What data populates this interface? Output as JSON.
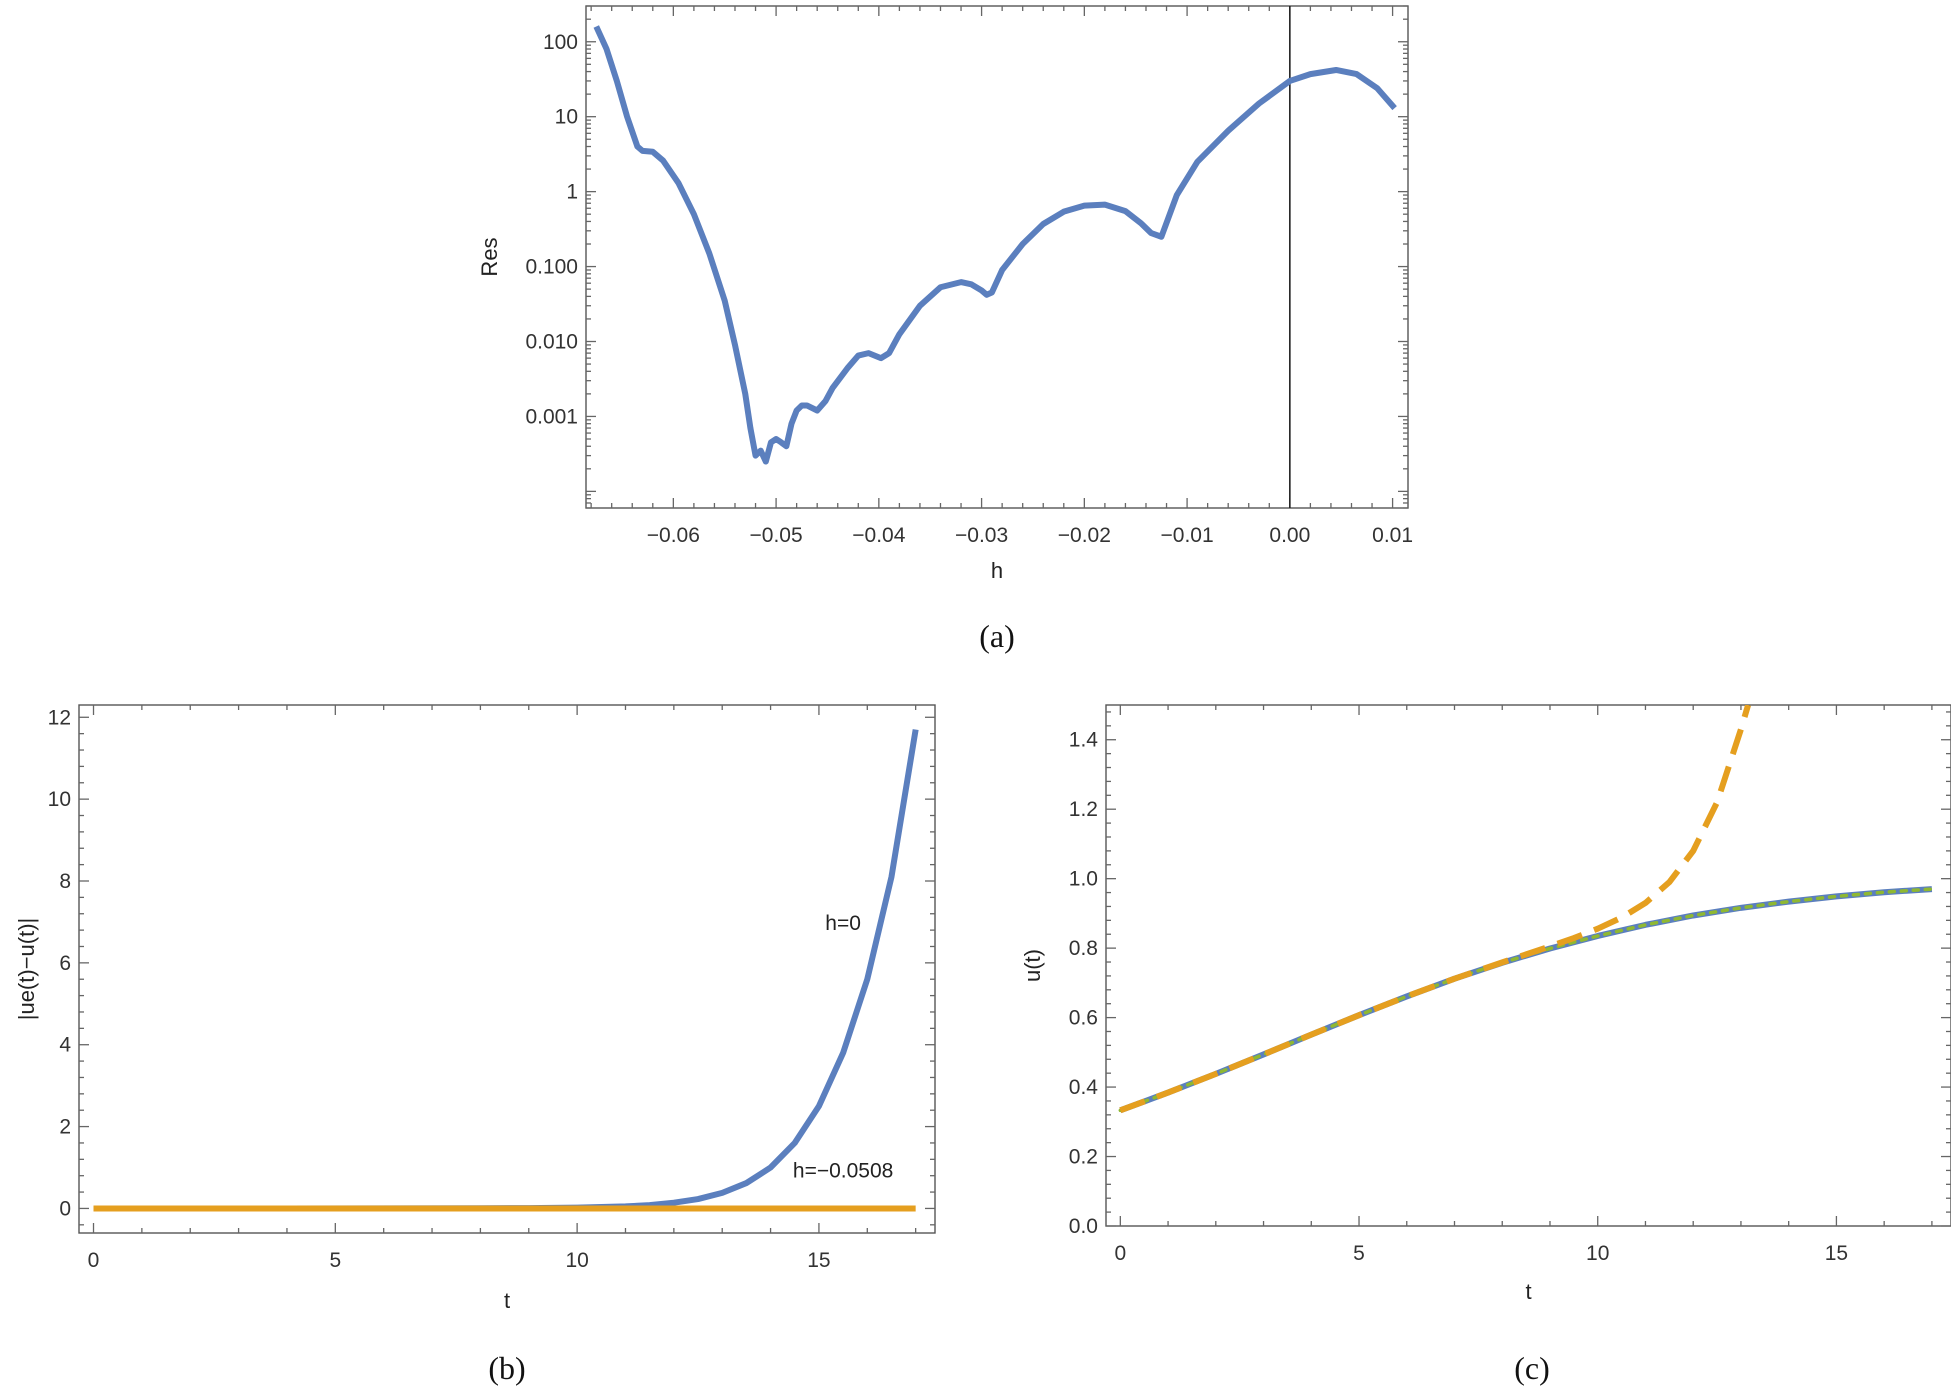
{
  "chart_data": [
    {
      "id": "a",
      "type": "line",
      "caption": "(a)",
      "xlabel": "h",
      "ylabel": "Res",
      "xlim": [
        -0.0685,
        0.0115
      ],
      "ylim": [
        6e-05,
        300
      ],
      "yscale": "log",
      "xticks": [
        -0.06,
        -0.05,
        -0.04,
        -0.03,
        -0.02,
        -0.01,
        0.0,
        0.01
      ],
      "xtick_labels": [
        "−0.06",
        "−0.05",
        "−0.04",
        "−0.03",
        "−0.02",
        "−0.01",
        "0.00",
        "0.01"
      ],
      "yticks": [
        0.001,
        0.01,
        0.1,
        1,
        10,
        100
      ],
      "ytick_labels": [
        "0.001",
        "0.010",
        "0.100",
        "1",
        "10",
        "100"
      ],
      "vline_x": 0.0,
      "series": [
        {
          "color": "#5b7fbe",
          "x": [
            -0.0675,
            -0.0665,
            -0.0655,
            -0.0645,
            -0.0635,
            -0.063,
            -0.062,
            -0.061,
            -0.0595,
            -0.058,
            -0.0565,
            -0.055,
            -0.054,
            -0.053,
            -0.0525,
            -0.052,
            -0.0515,
            -0.051,
            -0.0505,
            -0.05,
            -0.0495,
            -0.049,
            -0.0485,
            -0.048,
            -0.0475,
            -0.047,
            -0.046,
            -0.0452,
            -0.0445,
            -0.043,
            -0.042,
            -0.041,
            -0.0398,
            -0.039,
            -0.038,
            -0.036,
            -0.034,
            -0.032,
            -0.031,
            -0.03,
            -0.0295,
            -0.029,
            -0.028,
            -0.026,
            -0.024,
            -0.022,
            -0.02,
            -0.018,
            -0.016,
            -0.0145,
            -0.0135,
            -0.0125,
            -0.011,
            -0.009,
            -0.006,
            -0.003,
            0.0,
            0.002,
            0.0045,
            0.0065,
            0.0085,
            0.0102
          ],
          "y": [
            160,
            80,
            30,
            10,
            4,
            3.5,
            3.4,
            2.6,
            1.3,
            0.5,
            0.15,
            0.035,
            0.009,
            0.002,
            0.0007,
            0.0003,
            0.00035,
            0.00025,
            0.00045,
            0.0005,
            0.00045,
            0.0004,
            0.0008,
            0.0012,
            0.0014,
            0.0014,
            0.0012,
            0.0016,
            0.0024,
            0.0045,
            0.0065,
            0.007,
            0.006,
            0.007,
            0.0125,
            0.03,
            0.053,
            0.062,
            0.058,
            0.048,
            0.042,
            0.045,
            0.09,
            0.2,
            0.37,
            0.54,
            0.65,
            0.67,
            0.55,
            0.38,
            0.28,
            0.25,
            0.9,
            2.5,
            6.5,
            15,
            30,
            37,
            42,
            37,
            24,
            13
          ]
        }
      ]
    },
    {
      "id": "b",
      "type": "line",
      "caption": "(b)",
      "xlabel": "t",
      "ylabel": "|ue(t)−u(t)|",
      "xlim": [
        -0.3,
        17.4
      ],
      "ylim": [
        -0.6,
        12.3
      ],
      "xticks": [
        0,
        5,
        10,
        15
      ],
      "xtick_labels": [
        "0",
        "5",
        "10",
        "15"
      ],
      "yticks": [
        0,
        2,
        4,
        6,
        8,
        10,
        12
      ],
      "ytick_labels": [
        "0",
        "2",
        "4",
        "6",
        "8",
        "10",
        "12"
      ],
      "annotations": [
        {
          "text": "h=0",
          "x": 15.5,
          "y": 6.8
        },
        {
          "text": "h=−0.0508",
          "x": 15.5,
          "y": 0.75
        }
      ],
      "series": [
        {
          "label": "h=0",
          "color": "#5b7fbe",
          "x": [
            0,
            2,
            4,
            6,
            8,
            9,
            10,
            11,
            11.5,
            12,
            12.5,
            13,
            13.5,
            14,
            14.5,
            15,
            15.5,
            16,
            16.5,
            17
          ],
          "y": [
            0,
            0,
            0,
            0.001,
            0.004,
            0.008,
            0.02,
            0.05,
            0.08,
            0.14,
            0.23,
            0.38,
            0.62,
            1.0,
            1.6,
            2.5,
            3.8,
            5.6,
            8.1,
            11.7
          ]
        },
        {
          "label": "h=−0.0508",
          "color": "#e59f1f",
          "x": [
            0,
            17
          ],
          "y": [
            0,
            0
          ]
        }
      ]
    },
    {
      "id": "c",
      "type": "line",
      "caption": "(c)",
      "xlabel": "t",
      "ylabel": "u(t)",
      "xlim": [
        -0.3,
        17.4
      ],
      "ylim": [
        0.0,
        1.5
      ],
      "xticks": [
        0,
        5,
        10,
        15
      ],
      "xtick_labels": [
        "0",
        "5",
        "10",
        "15"
      ],
      "yticks": [
        0.0,
        0.2,
        0.4,
        0.6,
        0.8,
        1.0,
        1.2,
        1.4
      ],
      "ytick_labels": [
        "0.0",
        "0.2",
        "0.4",
        "0.6",
        "0.8",
        "1.0",
        "1.2",
        "1.4"
      ],
      "series": [
        {
          "color": "#5b7fbe",
          "style": "solid",
          "x": [
            0,
            1,
            2,
            3,
            4,
            5,
            6,
            7,
            8,
            9,
            10,
            11,
            12,
            13,
            14,
            15,
            16,
            17
          ],
          "y": [
            0.333,
            0.384,
            0.438,
            0.494,
            0.551,
            0.607,
            0.661,
            0.712,
            0.758,
            0.799,
            0.835,
            0.867,
            0.894,
            0.916,
            0.934,
            0.949,
            0.961,
            0.97
          ]
        },
        {
          "color": "#8fb832",
          "style": "dotted",
          "x": [
            0,
            1,
            2,
            3,
            4,
            5,
            6,
            7,
            8,
            9,
            10,
            11,
            12,
            13,
            14,
            15,
            16,
            17
          ],
          "y": [
            0.333,
            0.384,
            0.438,
            0.494,
            0.551,
            0.607,
            0.661,
            0.712,
            0.758,
            0.799,
            0.835,
            0.867,
            0.894,
            0.916,
            0.934,
            0.949,
            0.961,
            0.97
          ]
        },
        {
          "color": "#e59f1f",
          "style": "dashed",
          "x": [
            0,
            1,
            2,
            3,
            4,
            5,
            6,
            7,
            8,
            8.5,
            9,
            9.5,
            10,
            10.5,
            11,
            11.5,
            12,
            12.5,
            13,
            13.15
          ],
          "y": [
            0.333,
            0.384,
            0.438,
            0.494,
            0.551,
            0.607,
            0.661,
            0.712,
            0.759,
            0.782,
            0.805,
            0.829,
            0.856,
            0.888,
            0.93,
            0.99,
            1.08,
            1.22,
            1.43,
            1.5
          ]
        }
      ]
    }
  ]
}
